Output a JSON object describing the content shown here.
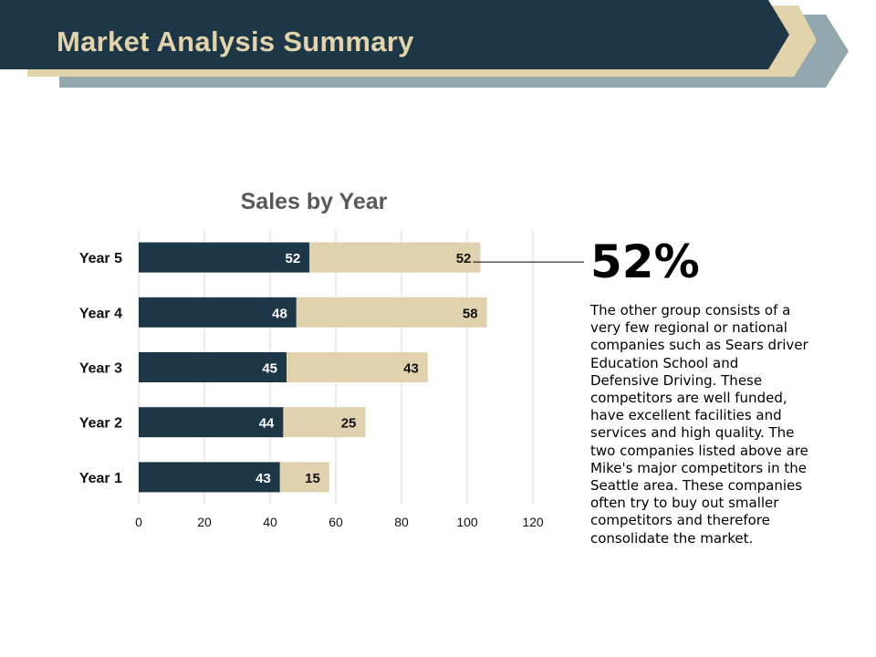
{
  "header": {
    "title": "Market Analysis Summary",
    "colors": {
      "dark": "#1e3746",
      "beige": "#e3d3ad",
      "gray_blue": "#93a8ae"
    }
  },
  "chart_data": {
    "type": "bar",
    "orientation": "horizontal",
    "stacked": true,
    "title": "Sales by Year",
    "categories": [
      "Year 1",
      "Year 2",
      "Year 3",
      "Year 4",
      "Year 5"
    ],
    "series": [
      {
        "values": [
          43,
          44,
          45,
          48,
          52
        ],
        "color": "#1e3746",
        "label_color": "#ffffff"
      },
      {
        "values": [
          15,
          25,
          43,
          58,
          52
        ],
        "color": "#e0d2ae",
        "label_color": "#111111"
      }
    ],
    "xlim": [
      0,
      120
    ],
    "xticks": [
      0,
      20,
      40,
      60,
      80,
      100,
      120
    ],
    "grid": true,
    "legend": "none"
  },
  "callout": {
    "value": "52%",
    "text": "The other group consists of a very few regional or national companies such as Sears driver Education School and Defensive Driving. These competitors are well funded, have excellent facilities and services and high quality. The two companies listed above are Mike's major competitors in the Seattle area. These companies often try to buy out smaller competitors and therefore consolidate the market."
  }
}
